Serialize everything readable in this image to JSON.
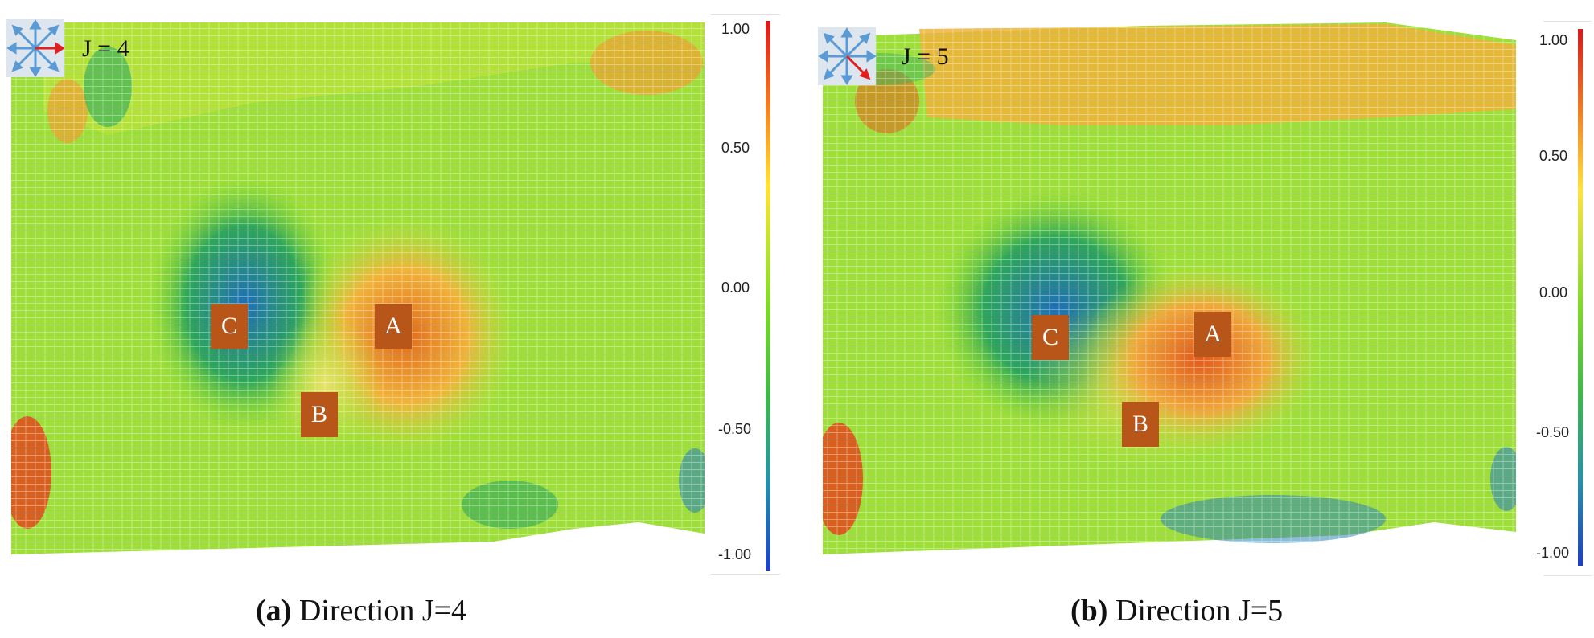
{
  "panels": [
    {
      "id": "a",
      "j_label": "J = 4",
      "caption_letter": "(a)",
      "caption_text": "Direction J=4",
      "regions": [
        "C",
        "A",
        "B"
      ],
      "colorbar_ticks": [
        "1.00",
        "0.50",
        "0.00",
        "-0.50",
        "-1.00"
      ]
    },
    {
      "id": "b",
      "j_label": "J = 5",
      "caption_letter": "(b)",
      "caption_text": "Direction J=5",
      "regions": [
        "C",
        "A",
        "B"
      ],
      "colorbar_ticks": [
        "1.00",
        "0.50",
        "0.00",
        "-0.50",
        "-1.00"
      ]
    }
  ],
  "colors": {
    "region_label_bg": "#b8561a",
    "colorbar_high": "#d7191c",
    "colorbar_mid": "#7fd82a",
    "colorbar_low": "#1f3fbf",
    "icon_arrow": "#5b9bd5",
    "icon_highlight": "#e02020"
  },
  "icons": [
    "direction-compass-icon"
  ]
}
